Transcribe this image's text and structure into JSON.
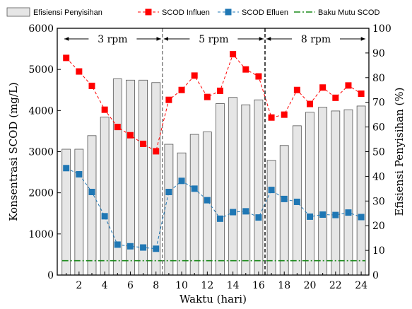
{
  "chart_data": {
    "type": "bar",
    "x": [
      1,
      2,
      3,
      4,
      5,
      6,
      7,
      8,
      9,
      10,
      11,
      12,
      13,
      14,
      15,
      16,
      17,
      18,
      19,
      20,
      21,
      22,
      23,
      24
    ],
    "xticks": [
      2,
      4,
      6,
      8,
      10,
      12,
      14,
      16,
      18,
      20,
      22,
      24
    ],
    "xlim": [
      0.3,
      24.6
    ],
    "xlabel": "Waktu (hari)",
    "ylabel_left": "Konsentrasi SCOD (mg/L)",
    "ylim_left": [
      0,
      6000
    ],
    "yticks_left": [
      0,
      1000,
      2000,
      3000,
      4000,
      5000,
      6000
    ],
    "ylabel_right": "Efisiensi Penyisihan (%)",
    "ylim_right": [
      0,
      100
    ],
    "yticks_right": [
      0,
      10,
      20,
      30,
      40,
      50,
      60,
      70,
      80,
      90,
      100
    ],
    "series": [
      {
        "name": "Efisiensi Penyisihan",
        "kind": "bar",
        "axis": "right",
        "color": "#e6e6e6",
        "values": [
          51,
          51,
          56.5,
          64,
          79.5,
          79,
          79,
          78,
          53,
          49.5,
          57,
          58,
          69.5,
          72,
          69,
          71,
          46.5,
          52.5,
          60.5,
          66,
          68,
          66.5,
          67,
          68.5
        ]
      },
      {
        "name": "SCOD Influen",
        "kind": "line",
        "axis": "left",
        "color": "#ff0000",
        "values": [
          5280,
          4950,
          4600,
          4020,
          3600,
          3400,
          3190,
          3010,
          4260,
          4500,
          4850,
          4330,
          4480,
          5370,
          5000,
          4830,
          3830,
          3900,
          4500,
          4160,
          4560,
          4310,
          4610,
          4410
        ]
      },
      {
        "name": "SCOD Efluen",
        "kind": "line",
        "axis": "left",
        "color": "#1f77b4",
        "values": [
          2600,
          2450,
          2020,
          1430,
          740,
          700,
          670,
          640,
          2020,
          2290,
          2100,
          1820,
          1370,
          1530,
          1550,
          1400,
          2070,
          1850,
          1780,
          1420,
          1470,
          1460,
          1520,
          1410
        ]
      },
      {
        "name": "Baku Mutu SCOD",
        "kind": "reference-line",
        "axis": "left",
        "color": "#1b8a1b",
        "value": 350
      }
    ],
    "phase_dividers": [
      8.5,
      16.5
    ],
    "phases": [
      {
        "label": "3 rpm",
        "from": 1,
        "to": 8.5
      },
      {
        "label": "5 rpm",
        "from": 8.5,
        "to": 16.5
      },
      {
        "label": "8 rpm",
        "from": 16.5,
        "to": 24.5
      }
    ],
    "legend_placement": "top"
  }
}
